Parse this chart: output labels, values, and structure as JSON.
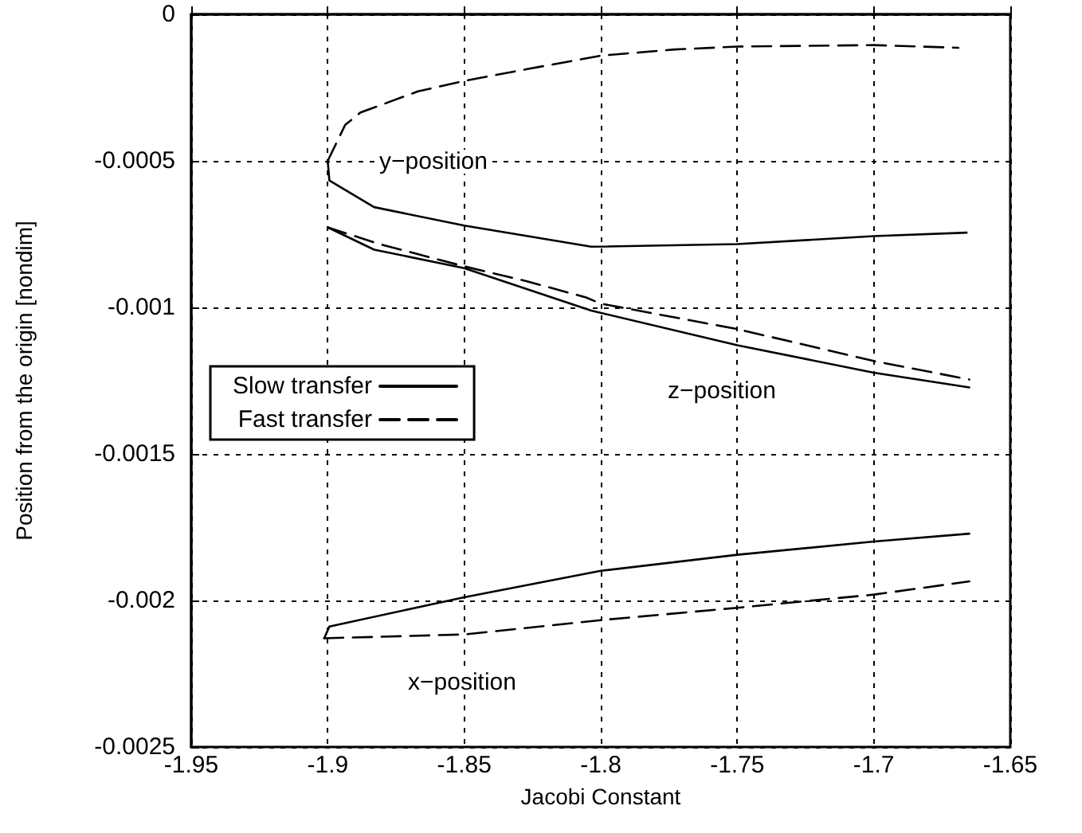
{
  "chart_data": {
    "type": "line",
    "xlabel": "Jacobi Constant",
    "ylabel": "Position from the origin [nondim]",
    "xlim": [
      -1.95,
      -1.65
    ],
    "xticks": [
      -1.95,
      -1.9,
      -1.85,
      -1.8,
      -1.75,
      -1.7,
      -1.65
    ],
    "ylim": [
      -0.0025,
      0
    ],
    "yticks": [
      -0.0025,
      -0.002,
      -0.0015,
      -0.001,
      -0.0005,
      0
    ],
    "grid": true,
    "legend": "left",
    "marker": "none",
    "annotations": [
      "y−position",
      "z−position",
      "x−position"
    ],
    "series": [
      {
        "name": "Slow transfer",
        "color": "#000000",
        "line_style": "solid",
        "x": [
          -1.9,
          -1.8994,
          -1.883,
          -1.85,
          -1.8035,
          -1.75,
          -1.7,
          -1.666
        ],
        "values": [
          -0.0005,
          -0.000567,
          -0.000658,
          -0.000721,
          -0.000793,
          -0.000784,
          -0.000757,
          -0.000745
        ]
      },
      {
        "name": "Fast transfer",
        "color": "#000000",
        "line_style": "dashed",
        "x": [
          -1.9,
          -1.8936,
          -1.888,
          -1.867,
          -1.85,
          -1.827,
          -1.8,
          -1.773,
          -1.75,
          -1.7,
          -1.669
        ],
        "values": [
          -0.0005,
          -0.000377,
          -0.000335,
          -0.000263,
          -0.000227,
          -0.000187,
          -0.000141,
          -0.00012,
          -0.00011,
          -0.000105,
          -0.000114
        ]
      },
      {
        "color": "#000000",
        "line_style": "solid",
        "x": [
          -1.9,
          -1.883,
          -1.85,
          -1.8035,
          -1.75,
          -1.7,
          -1.665
        ],
        "values": [
          -0.000727,
          -0.000803,
          -0.000866,
          -0.001011,
          -0.001129,
          -0.001223,
          -0.001273
        ]
      },
      {
        "color": "#000000",
        "line_style": "dashed",
        "x": [
          -1.9,
          -1.881,
          -1.85,
          -1.827,
          -1.8054,
          -1.8,
          -1.75,
          -1.7,
          -1.665
        ],
        "values": [
          -0.000727,
          -0.000784,
          -0.00086,
          -0.000911,
          -0.000966,
          -0.000987,
          -0.001074,
          -0.001183,
          -0.001246
        ]
      },
      {
        "color": "#000000",
        "line_style": "solid",
        "x": [
          -1.9013,
          -1.8994,
          -1.85,
          -1.8,
          -1.75,
          -1.7,
          -1.665
        ],
        "values": [
          -0.002129,
          -0.002089,
          -0.001989,
          -0.001899,
          -0.001844,
          -0.001799,
          -0.001772
        ]
      },
      {
        "color": "#000000",
        "line_style": "dashed",
        "x": [
          -1.9013,
          -1.85,
          -1.8,
          -1.75,
          -1.7,
          -1.665
        ],
        "values": [
          -0.002129,
          -0.002116,
          -0.002067,
          -0.002025,
          -0.00198,
          -0.001935
        ]
      }
    ]
  }
}
